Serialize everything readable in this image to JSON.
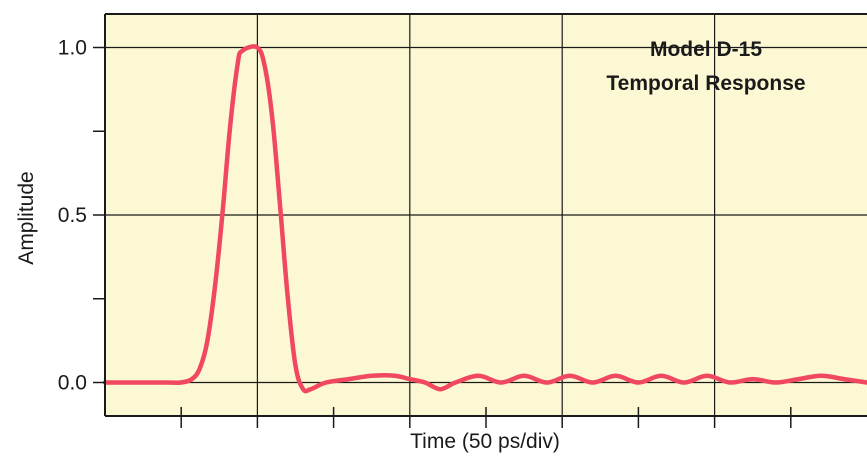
{
  "colors": {
    "plot_background": "#fdf8d4",
    "grid": "#1a1a1a",
    "axes": "#1a1a1a",
    "trace": "#ef4860"
  },
  "chart_data": {
    "type": "line",
    "title_lines": [
      "Model D-15",
      "Temporal Response"
    ],
    "xlabel": "Time (50 ps/div)",
    "ylabel": "Amplitude",
    "xlim": [
      0,
      500
    ],
    "ylim": [
      -0.1,
      1.1
    ],
    "y_ticks": [
      {
        "value": 1.0,
        "label": "1.0"
      },
      {
        "value": 0.5,
        "label": "0.5"
      },
      {
        "value": 0.0,
        "label": "0.0"
      }
    ],
    "y_minor_ticks": [
      0.25,
      0.75
    ],
    "x_major_divisions": [
      0,
      100,
      200,
      300,
      400,
      500
    ],
    "x_minor_ticks": [
      50,
      150,
      250,
      350,
      450
    ],
    "x_tick_labels": false,
    "grid": true,
    "legend": false,
    "series": [
      {
        "values": [
          [
            0,
            0.0
          ],
          [
            20,
            0.0
          ],
          [
            40,
            0.0
          ],
          [
            50,
            0.0
          ],
          [
            57,
            0.01
          ],
          [
            62,
            0.04
          ],
          [
            67,
            0.12
          ],
          [
            72,
            0.28
          ],
          [
            77,
            0.5
          ],
          [
            82,
            0.76
          ],
          [
            87,
            0.95
          ],
          [
            90,
            0.99
          ],
          [
            100,
            1.0
          ],
          [
            105,
            0.94
          ],
          [
            110,
            0.78
          ],
          [
            115,
            0.52
          ],
          [
            120,
            0.25
          ],
          [
            125,
            0.05
          ],
          [
            130,
            -0.02
          ],
          [
            135,
            -0.02
          ],
          [
            145,
            0.0
          ],
          [
            160,
            0.01
          ],
          [
            175,
            0.02
          ],
          [
            190,
            0.02
          ],
          [
            200,
            0.01
          ],
          [
            210,
            0.0
          ],
          [
            220,
            -0.02
          ],
          [
            230,
            0.0
          ],
          [
            245,
            0.02
          ],
          [
            260,
            0.0
          ],
          [
            275,
            0.02
          ],
          [
            290,
            0.0
          ],
          [
            305,
            0.02
          ],
          [
            320,
            0.0
          ],
          [
            335,
            0.02
          ],
          [
            350,
            0.0
          ],
          [
            365,
            0.02
          ],
          [
            380,
            0.0
          ],
          [
            395,
            0.02
          ],
          [
            410,
            0.0
          ],
          [
            425,
            0.01
          ],
          [
            440,
            0.0
          ],
          [
            455,
            0.01
          ],
          [
            470,
            0.02
          ],
          [
            485,
            0.01
          ],
          [
            500,
            0.0
          ]
        ]
      }
    ]
  }
}
